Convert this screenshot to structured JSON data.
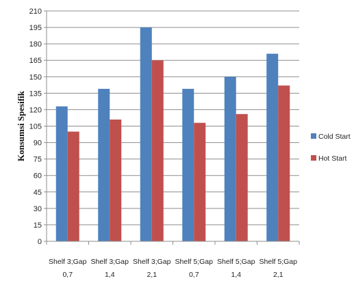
{
  "chart_data": {
    "type": "bar",
    "title": "",
    "xlabel": "",
    "ylabel": "Konsumsi Spesifik",
    "ylim": [
      0,
      210
    ],
    "yticks": [
      0,
      15,
      30,
      45,
      60,
      75,
      90,
      105,
      120,
      135,
      150,
      165,
      180,
      195,
      210
    ],
    "grid": true,
    "legend_position": "right",
    "categories": [
      [
        "Shelf 3;Gap",
        "0,7"
      ],
      [
        "Shelf 3;Gap",
        "1,4"
      ],
      [
        "Shelf 3;Gap",
        "2,1"
      ],
      [
        "Shelf 5;Gap",
        "0,7"
      ],
      [
        "Shelf 5;Gap",
        "1,4"
      ],
      [
        "Shelf 5;Gap",
        "2,1"
      ]
    ],
    "series": [
      {
        "name": "Cold Start",
        "color": "#4F81BD",
        "values": [
          123,
          139,
          195,
          139,
          150,
          171
        ]
      },
      {
        "name": "Hot Start",
        "color": "#C0504D",
        "values": [
          100,
          111,
          165,
          108,
          116,
          142
        ]
      }
    ]
  }
}
